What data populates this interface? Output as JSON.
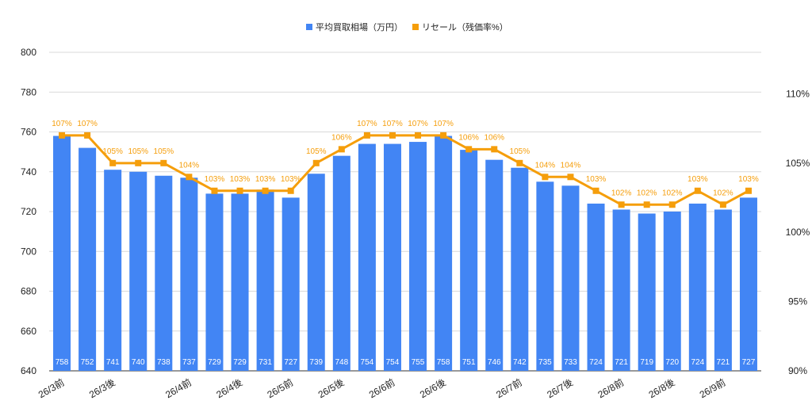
{
  "chart_data": {
    "type": "bar",
    "categories": [
      "26/3前",
      "",
      "26/3後",
      "",
      "",
      "26/4前",
      "",
      "26/4後",
      "",
      "26/5前",
      "",
      "26/5後",
      "",
      "26/6前",
      "",
      "26/6後",
      "",
      "",
      "26/7前",
      "",
      "26/7後",
      "",
      "26/8前",
      "",
      "26/8後",
      "",
      "26/9前",
      ""
    ],
    "legend_position": "top",
    "series": [
      {
        "name": "平均買取相場（万円）",
        "type": "bar",
        "axis": "left",
        "color": "#4285f4",
        "values": [
          758,
          752,
          741,
          740,
          738,
          737,
          729,
          729,
          731,
          727,
          739,
          748,
          754,
          754,
          755,
          758,
          751,
          746,
          742,
          735,
          733,
          724,
          721,
          719,
          720,
          724,
          721,
          727
        ],
        "labels": [
          "758",
          "752",
          "741",
          "740",
          "738",
          "737",
          "729",
          "729",
          "731",
          "727",
          "739",
          "748",
          "754",
          "754",
          "755",
          "758",
          "751",
          "746",
          "742",
          "735",
          "733",
          "724",
          "721",
          "719",
          "720",
          "724",
          "721",
          "727"
        ]
      },
      {
        "name": "リセール（残価率%）",
        "type": "line",
        "axis": "right",
        "color": "#f59e0b",
        "values": [
          107,
          107,
          105,
          105,
          105,
          104,
          103,
          103,
          103,
          103,
          105,
          106,
          107,
          107,
          107,
          107,
          106,
          106,
          105,
          104,
          104,
          103,
          102,
          102,
          102,
          103,
          102,
          103
        ],
        "labels": [
          "107%",
          "107%",
          "105%",
          "105%",
          "105%",
          "104%",
          "103%",
          "103%",
          "103%",
          "103%",
          "105%",
          "106%",
          "107%",
          "107%",
          "107%",
          "107%",
          "106%",
          "106%",
          "105%",
          "104%",
          "104%",
          "103%",
          "102%",
          "102%",
          "102%",
          "103%",
          "102%",
          "103%"
        ]
      }
    ],
    "y_left": {
      "min": 640,
      "max": 800,
      "ticks": [
        "640",
        "660",
        "680",
        "700",
        "720",
        "740",
        "760",
        "780",
        "800"
      ]
    },
    "y_right": {
      "min": 90,
      "max": 113,
      "ticks": [
        "90%",
        "95%",
        "100%",
        "105%",
        "110%"
      ],
      "tick_values": [
        90,
        95,
        100,
        105,
        110
      ]
    },
    "grid": true
  }
}
